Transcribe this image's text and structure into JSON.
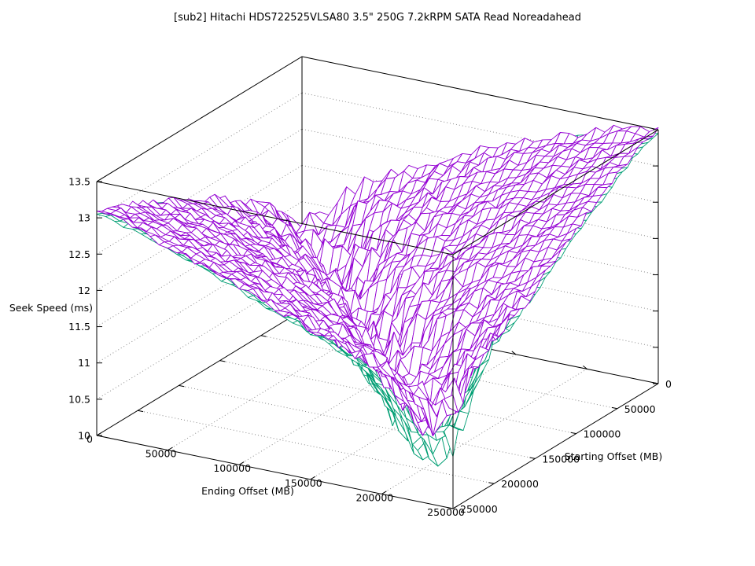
{
  "chart_data": {
    "type": "surface",
    "title": "[sub2] Hitachi HDS722525VLSA80 3.5\" 250G 7.2kRPM SATA Read Noreadahead",
    "xlabel": "Ending Offset (MB)",
    "ylabel": "Starting Offset (MB)",
    "zlabel": "Seek Speed (ms)",
    "x_range": [
      0,
      250000
    ],
    "y_range": [
      0,
      250000
    ],
    "z_range": [
      10,
      13.5
    ],
    "x_ticks": [
      {
        "v": 0,
        "t": "0"
      },
      {
        "v": 50000,
        "t": "50000"
      },
      {
        "v": 100000,
        "t": "100000"
      },
      {
        "v": 150000,
        "t": "150000"
      },
      {
        "v": 200000,
        "t": "200000"
      },
      {
        "v": 250000,
        "t": "250000"
      }
    ],
    "y_ticks": [
      {
        "v": 0,
        "t": "0"
      },
      {
        "v": 50000,
        "t": "50000"
      },
      {
        "v": 100000,
        "t": "100000"
      },
      {
        "v": 150000,
        "t": "150000"
      },
      {
        "v": 200000,
        "t": "200000"
      },
      {
        "v": 250000,
        "t": "250000"
      }
    ],
    "z_ticks": [
      {
        "v": 10,
        "t": "10"
      },
      {
        "v": 10.5,
        "t": "10.5"
      },
      {
        "v": 11,
        "t": "11"
      },
      {
        "v": 11.5,
        "t": "11.5"
      },
      {
        "v": 12,
        "t": "12"
      },
      {
        "v": 12.5,
        "t": "12.5"
      },
      {
        "v": 13,
        "t": "13"
      },
      {
        "v": 13.5,
        "t": "13.5"
      }
    ],
    "grid_on": true,
    "legend": "none",
    "grid_color": "#8a8a8a",
    "surfaces": [
      {
        "name": "read-seek-surface",
        "color": "#9400D3",
        "grid_step_mb": 25000,
        "z_grid": [
          [
            10.9,
            11.56,
            11.83,
            12.04,
            12.23,
            12.41,
            12.57,
            12.72,
            12.86,
            13.0,
            13.13
          ],
          [
            11.68,
            10.8,
            11.46,
            11.75,
            11.99,
            12.19,
            12.37,
            12.54,
            12.7,
            12.84,
            12.98
          ],
          [
            12.02,
            11.58,
            10.72,
            11.41,
            11.71,
            11.95,
            12.16,
            12.35,
            12.52,
            12.68,
            12.81
          ],
          [
            12.27,
            11.94,
            11.53,
            10.68,
            11.37,
            11.68,
            11.93,
            12.14,
            12.33,
            12.49,
            12.64
          ],
          [
            12.5,
            12.22,
            11.9,
            11.49,
            10.65,
            11.35,
            11.66,
            11.91,
            12.11,
            12.29,
            12.46
          ],
          [
            12.72,
            12.46,
            12.18,
            11.87,
            11.47,
            10.63,
            11.33,
            11.63,
            11.87,
            12.08,
            12.27
          ],
          [
            12.91,
            12.68,
            12.43,
            12.16,
            11.85,
            11.45,
            10.6,
            11.29,
            11.6,
            11.85,
            12.06
          ],
          [
            13.09,
            12.88,
            12.66,
            12.41,
            12.14,
            11.82,
            11.41,
            10.57,
            11.27,
            11.58,
            11.91
          ],
          [
            13.26,
            13.07,
            12.86,
            12.64,
            12.38,
            12.1,
            11.79,
            11.39,
            10.55,
            11.33,
            11.78
          ],
          [
            13.43,
            13.24,
            13.05,
            12.83,
            12.6,
            12.35,
            12.08,
            11.77,
            11.45,
            10.75,
            11.66
          ],
          [
            13.48,
            13.41,
            13.21,
            13.01,
            12.8,
            12.58,
            12.33,
            12.13,
            12.04,
            11.78,
            11.3
          ]
        ]
      },
      {
        "name": "secondary-seek-surface",
        "color": "#009E73",
        "derived_from": "read-seek-surface",
        "z_delta_diagonal": -0.3,
        "z_delta_off_diagonal": -0.02
      }
    ],
    "render": {
      "upsample": 4,
      "noise_base": 0.05,
      "noise_diagonal": 0.22,
      "noise_base2": 0.06,
      "noise_diagonal2": 0.26,
      "noise_falloff": 6,
      "seed": 1337,
      "seed2": 4242
    }
  }
}
